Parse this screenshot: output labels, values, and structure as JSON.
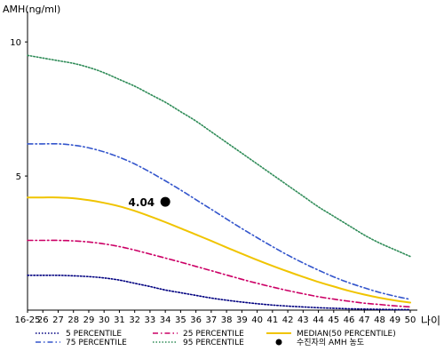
{
  "chart_data": {
    "type": "line",
    "ylabel": "AMH(ng/ml)",
    "xlabel": "나이",
    "ylim": [
      0,
      11
    ],
    "y_ticks": [
      5,
      10
    ],
    "categories": [
      "16-25",
      "26",
      "27",
      "28",
      "29",
      "30",
      "31",
      "32",
      "33",
      "34",
      "35",
      "36",
      "37",
      "38",
      "39",
      "40",
      "41",
      "42",
      "43",
      "44",
      "45",
      "46",
      "47",
      "48",
      "49",
      "50"
    ],
    "series": [
      {
        "name": "5 PERCENTILE",
        "color": "#000080",
        "dash": "dotted",
        "values": [
          1.3,
          1.3,
          1.3,
          1.28,
          1.25,
          1.2,
          1.12,
          1.0,
          0.88,
          0.75,
          0.65,
          0.55,
          0.45,
          0.37,
          0.3,
          0.24,
          0.19,
          0.15,
          0.12,
          0.09,
          0.07,
          0.05,
          0.04,
          0.03,
          0.02,
          0.02
        ]
      },
      {
        "name": "25 PERCENTILE",
        "color": "#cc0066",
        "dash": "dashdot",
        "values": [
          2.6,
          2.6,
          2.6,
          2.58,
          2.54,
          2.47,
          2.37,
          2.24,
          2.09,
          1.94,
          1.79,
          1.63,
          1.47,
          1.31,
          1.15,
          1.0,
          0.86,
          0.73,
          0.61,
          0.5,
          0.41,
          0.33,
          0.26,
          0.21,
          0.16,
          0.12
        ]
      },
      {
        "name": "75 PERCENTILE",
        "color": "#3355cc",
        "dash": "dashdot",
        "values": [
          6.2,
          6.2,
          6.2,
          6.15,
          6.05,
          5.9,
          5.7,
          5.45,
          5.15,
          4.82,
          4.48,
          4.12,
          3.76,
          3.4,
          3.04,
          2.7,
          2.37,
          2.05,
          1.76,
          1.49,
          1.24,
          1.02,
          0.83,
          0.66,
          0.52,
          0.4
        ]
      },
      {
        "name": "95 PERCENTILE",
        "color": "#2e8b57",
        "dash": "dotted",
        "values": [
          9.5,
          9.4,
          9.3,
          9.2,
          9.05,
          8.85,
          8.6,
          8.35,
          8.05,
          7.75,
          7.4,
          7.05,
          6.65,
          6.25,
          5.85,
          5.45,
          5.05,
          4.65,
          4.25,
          3.85,
          3.5,
          3.15,
          2.8,
          2.5,
          2.25,
          2.0
        ]
      },
      {
        "name": "MEDIAN(50 PERCENTILE)",
        "color": "#f0c400",
        "dash": "solid",
        "values": [
          4.2,
          4.2,
          4.2,
          4.17,
          4.1,
          4.0,
          3.87,
          3.7,
          3.5,
          3.28,
          3.05,
          2.82,
          2.58,
          2.34,
          2.1,
          1.87,
          1.65,
          1.44,
          1.24,
          1.05,
          0.88,
          0.72,
          0.58,
          0.46,
          0.36,
          0.28
        ]
      }
    ],
    "patient_point": {
      "name": "수진자의 AMH 농도",
      "x": "34",
      "y": 4.04,
      "label": "4.04",
      "color": "#000000"
    },
    "legend_position": "bottom",
    "grid": false
  }
}
